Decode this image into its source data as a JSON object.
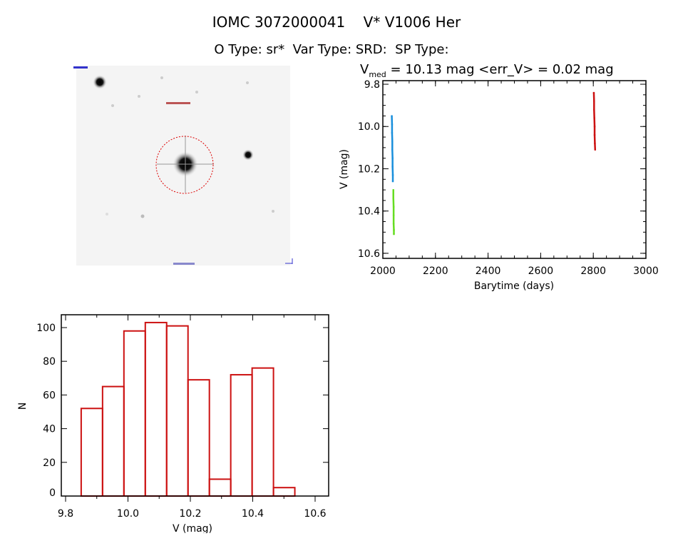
{
  "header": {
    "title": "IOMC 3072000041    V* V1006 Her",
    "subtitle": "O Type: sr*  Var Type: SRD:  SP Type:"
  },
  "colors": {
    "hist": "#cc1111",
    "blue": "#1a8fdc",
    "green": "#66dd22",
    "red": "#cc1111"
  },
  "chart_data": [
    {
      "type": "scatter",
      "title_prefix": "V",
      "title_sub": "med",
      "title_rest": " = 10.13 mag <err_V> = 0.02 mag",
      "xlabel": "Barytime (days)",
      "ylabel": "V (mag)",
      "xlim": [
        2000,
        3000
      ],
      "ylim": [
        10.624,
        9.783
      ],
      "xticks": [
        "2000",
        "2200",
        "2400",
        "2600",
        "2800",
        "3000"
      ],
      "yticks": [
        "9.8",
        "10.0",
        "10.2",
        "10.4",
        "10.6"
      ],
      "series": [
        {
          "name": "blue",
          "color": "#1a8fdc",
          "x": [
            2034,
            2035,
            2035,
            2036,
            2036,
            2037,
            2037,
            2038,
            2038
          ],
          "y": [
            9.95,
            9.99,
            10.03,
            10.07,
            10.11,
            10.15,
            10.19,
            10.23,
            10.26
          ]
        },
        {
          "name": "green",
          "color": "#66dd22",
          "x": [
            2040,
            2040,
            2041,
            2041,
            2041,
            2042,
            2042
          ],
          "y": [
            10.3,
            10.34,
            10.38,
            10.42,
            10.46,
            10.49,
            10.51
          ]
        },
        {
          "name": "red",
          "color": "#cc1111",
          "x": [
            2802,
            2803,
            2803,
            2804,
            2805,
            2805,
            2806,
            2807
          ],
          "y": [
            9.84,
            9.88,
            9.92,
            9.96,
            10.0,
            10.04,
            10.08,
            10.11
          ]
        }
      ]
    },
    {
      "type": "bar",
      "title": "",
      "xlabel": "V (mag)",
      "ylabel": "N",
      "xlim": [
        9.8,
        10.65
      ],
      "ylim": [
        0,
        108
      ],
      "xticks": [
        "9.8",
        "10.0",
        "10.2",
        "10.4",
        "10.6"
      ],
      "yticks": [
        "0",
        "20",
        "40",
        "60",
        "80",
        "100"
      ],
      "bin_start": 9.85,
      "bin_width": 0.0685,
      "values": [
        52,
        65,
        98,
        103,
        101,
        69,
        10,
        72,
        76,
        5
      ]
    }
  ]
}
